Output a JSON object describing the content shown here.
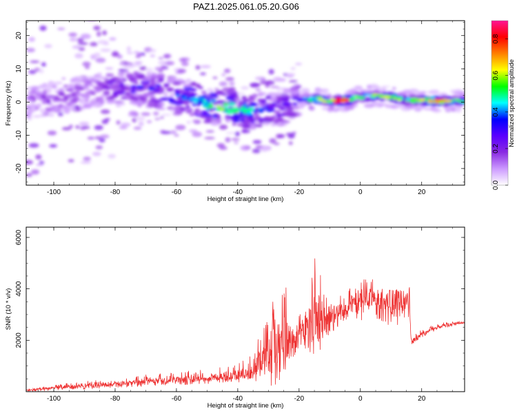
{
  "figure_title": "PAZ1.2025.061.05.20.G06",
  "chart_data": [
    {
      "type": "heatmap",
      "xlabel": "Height of straight line (km)",
      "ylabel": "Frequency (Hz)",
      "xlim": [
        -109,
        34
      ],
      "ylim": [
        -25,
        24.5
      ],
      "xticks": [
        -100,
        -80,
        -60,
        -40,
        -20,
        0,
        20
      ],
      "yticks": [
        -20,
        -10,
        0,
        10,
        20
      ],
      "colorbar": {
        "label": "Normalized spectral amplitude",
        "range": [
          0,
          0.9
        ],
        "ticks": [
          0.0,
          0.2,
          0.4,
          0.6,
          0.8
        ],
        "colormap": [
          "#ffffff",
          "#cc99ff",
          "#8a2be2",
          "#5a00ff",
          "#0000ff",
          "#00ffff",
          "#00ff00",
          "#ffff00",
          "#ff8000",
          "#ff0000",
          "#ff1493"
        ]
      },
      "ridge": {
        "x": [
          -108,
          -100,
          -90,
          -80,
          -70,
          -60,
          -55,
          -50,
          -45,
          -40,
          -35,
          -30,
          -25,
          -20,
          -15,
          -10,
          -5,
          0,
          5,
          10,
          15,
          20,
          25,
          30,
          34
        ],
        "center_freq": [
          0,
          1,
          3,
          4,
          4,
          2,
          1,
          -1,
          -2,
          -2,
          -3,
          -2,
          -2,
          1,
          1,
          0.5,
          0.5,
          1.5,
          2,
          1.5,
          0.5,
          0.5,
          0.3,
          0.3,
          0.3
        ],
        "amplitude": [
          0.18,
          0.2,
          0.22,
          0.3,
          0.35,
          0.4,
          0.45,
          0.5,
          0.6,
          0.55,
          0.45,
          0.35,
          0.3,
          0.35,
          0.55,
          0.65,
          0.85,
          0.5,
          0.6,
          0.7,
          0.55,
          0.6,
          0.85,
          0.6,
          0.5
        ]
      }
    },
    {
      "type": "line",
      "xlabel": "Height of straight line (km)",
      "ylabel": "SNR (10 * v/v)",
      "xlim": [
        -109,
        34
      ],
      "ylim": [
        0,
        6400
      ],
      "xticks": [
        -100,
        -80,
        -60,
        -40,
        -20,
        0,
        20
      ],
      "yticks": [
        2000,
        4000,
        6000
      ],
      "color": "#ee3333",
      "envelope": {
        "x": [
          -109,
          -100,
          -90,
          -80,
          -70,
          -60,
          -50,
          -40,
          -35,
          -32,
          -30,
          -28,
          -26,
          -25,
          -24,
          -22,
          -20,
          -18,
          -16,
          -14,
          -12,
          -10,
          -8,
          -5,
          -2,
          0,
          2,
          5,
          8,
          11,
          14,
          16,
          16.5,
          20,
          25,
          30,
          34
        ],
        "min": [
          0,
          50,
          100,
          150,
          200,
          250,
          300,
          350,
          400,
          300,
          200,
          0,
          0,
          500,
          1000,
          1300,
          1700,
          1600,
          1500,
          1300,
          1400,
          2300,
          2400,
          2700,
          3000,
          2600,
          3000,
          2800,
          2600,
          2500,
          2600,
          2800,
          1800,
          2100,
          2400,
          2550,
          2650
        ],
        "max": [
          120,
          250,
          450,
          450,
          700,
          750,
          900,
          1100,
          1500,
          2500,
          3100,
          4000,
          3800,
          6400,
          4200,
          3200,
          3000,
          3500,
          4800,
          5600,
          4000,
          3400,
          3700,
          3800,
          4300,
          4900,
          4300,
          4500,
          4300,
          4500,
          4400,
          4400,
          2200,
          2400,
          2650,
          2750,
          2800
        ],
        "mean": [
          60,
          150,
          250,
          300,
          400,
          450,
          550,
          650,
          800,
          1300,
          1500,
          1700,
          1900,
          2800,
          2300,
          2200,
          2300,
          2500,
          2700,
          3000,
          2700,
          2900,
          3100,
          3200,
          3500,
          3600,
          3500,
          3600,
          3400,
          3500,
          3500,
          3500,
          2000,
          2250,
          2500,
          2650,
          2700
        ]
      }
    }
  ]
}
